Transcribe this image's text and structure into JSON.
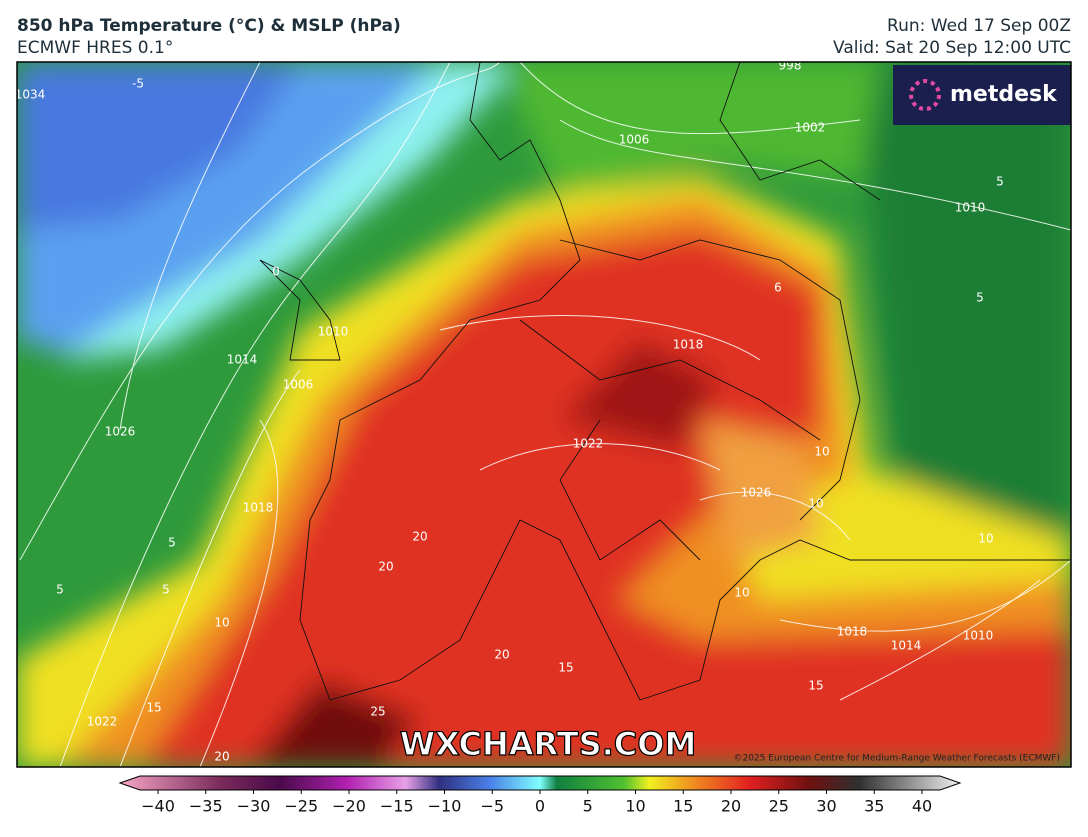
{
  "header": {
    "title": "850 hPa Temperature (°C) & MSLP (hPa)",
    "subtitle": "ECMWF HRES 0.1°",
    "run": "Run: Wed 17 Sep 00Z",
    "valid": "Valid: Sat 20 Sep 12:00 UTC"
  },
  "map": {
    "logo": "metdesk",
    "watermark": "WXCHARTS.COM",
    "copyright": "©2025 European Centre for Medium-Range Weather Forecasts (ECMWF)",
    "contour_labels": [
      "1034",
      "-5",
      "0",
      "998",
      "1006",
      "1002",
      "1010",
      "5",
      "5",
      "6",
      "1018",
      "1014",
      "1010",
      "1006",
      "1026",
      "1022",
      "1026",
      "10",
      "10",
      "10",
      "1018",
      "5",
      "5",
      "5",
      "20",
      "20",
      "10",
      "10",
      "1018",
      "1014",
      "1010",
      "15",
      "15",
      "20",
      "15",
      "1022",
      "25",
      "20"
    ]
  },
  "colorbar": {
    "ticks": [
      {
        "value": -40,
        "label": "−40"
      },
      {
        "value": -35,
        "label": "−35"
      },
      {
        "value": -30,
        "label": "−30"
      },
      {
        "value": -25,
        "label": "−25"
      },
      {
        "value": -20,
        "label": "−20"
      },
      {
        "value": -15,
        "label": "−15"
      },
      {
        "value": -10,
        "label": "−10"
      },
      {
        "value": -5,
        "label": "−5"
      },
      0,
      5,
      10,
      15,
      20,
      25,
      30,
      35,
      40
    ]
  }
}
